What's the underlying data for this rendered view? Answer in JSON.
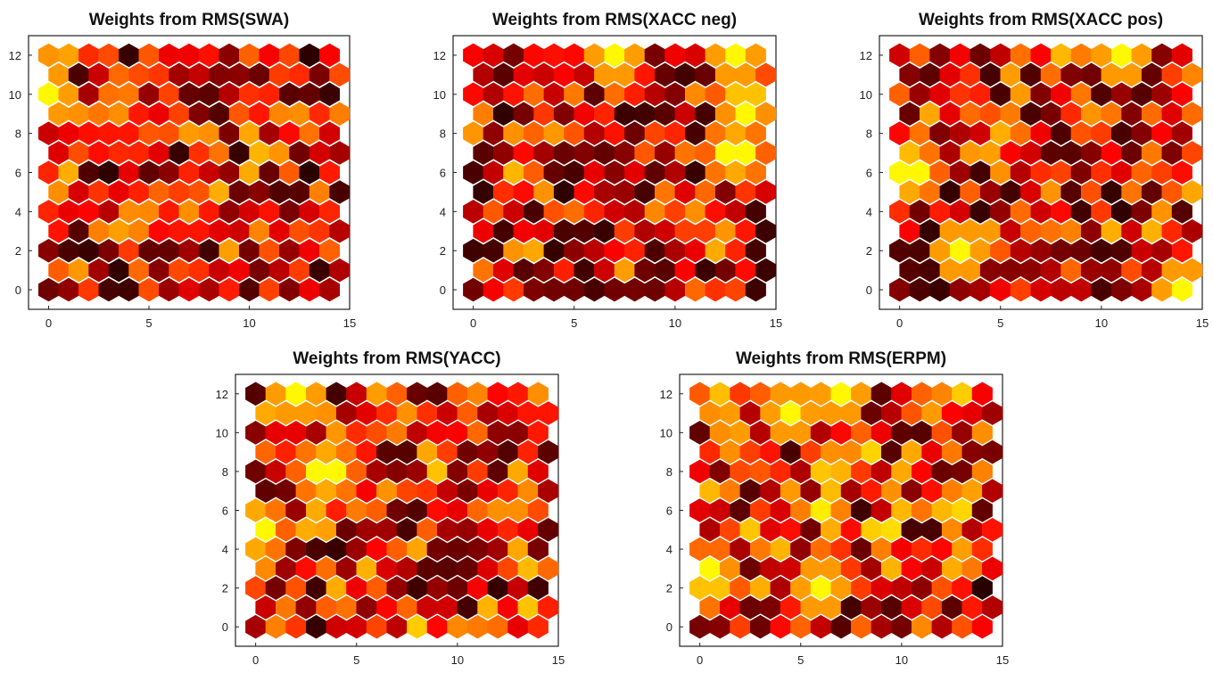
{
  "figure": {
    "panels": [
      {
        "title": "Weights from RMS(SWA)",
        "seed": 11,
        "hot": 0.15
      },
      {
        "title": "Weights from RMS(XACC neg)",
        "seed": 23,
        "hot": 0.18
      },
      {
        "title": "Weights from RMS(XACC pos)",
        "seed": 37,
        "hot": 0.3
      },
      {
        "title": "Weights from RMS(YACC)",
        "seed": 41,
        "hot": 0.45
      },
      {
        "title": "Weights from RMS(ERPM)",
        "seed": 53,
        "hot": 0.85
      }
    ]
  },
  "chart_data": [
    {
      "type": "heatmap",
      "title": "Weights from RMS(SWA)",
      "grid": "hexagonal self-organizing map, 15 columns x 13 rows",
      "colormap": "hot (black -> red -> orange -> yellow)",
      "xlim": [
        -1,
        15
      ],
      "ylim": [
        -1,
        13
      ],
      "xticks": [
        0,
        5,
        10,
        15
      ],
      "yticks": [
        0,
        2,
        4,
        6,
        8,
        10,
        12
      ],
      "summary": "mostly dark red/black with brighter red-orange cells near upper left; yellow at (0,10)",
      "highlights": [
        {
          "x": 0,
          "y": 10,
          "level": "yellow"
        },
        {
          "x": 3.5,
          "y": 9,
          "level": "orange"
        },
        {
          "x": 7,
          "y": 4,
          "level": "orange"
        },
        {
          "x": 0,
          "y": 5,
          "level": "orange"
        }
      ]
    },
    {
      "type": "heatmap",
      "title": "Weights from RMS(XACC neg)",
      "grid": "hexagonal self-organizing map, 15 columns x 13 rows",
      "colormap": "hot",
      "xlim": [
        -1,
        15
      ],
      "ylim": [
        -1,
        13
      ],
      "xticks": [
        0,
        5,
        10,
        15
      ],
      "yticks": [
        0,
        2,
        4,
        6,
        8,
        10,
        12
      ],
      "summary": "dark map with bright yellow/orange cluster near upper right",
      "highlights": [
        {
          "x": 13,
          "y": 12,
          "level": "yellow"
        },
        {
          "x": 7,
          "y": 12,
          "level": "yellow"
        },
        {
          "x": 13.5,
          "y": 9.5,
          "level": "yellow"
        },
        {
          "x": 13,
          "y": 7,
          "level": "yellow"
        },
        {
          "x": 11,
          "y": 3.5,
          "level": "orange"
        }
      ]
    },
    {
      "type": "heatmap",
      "title": "Weights from RMS(XACC pos)",
      "grid": "hexagonal self-organizing map, 15 columns x 13 rows",
      "colormap": "hot",
      "xlim": [
        -1,
        15
      ],
      "ylim": [
        -1,
        13
      ],
      "xticks": [
        0,
        5,
        10,
        15
      ],
      "yticks": [
        0,
        2,
        4,
        6,
        8,
        10,
        12
      ],
      "summary": "mixed red/black with scattered yellow-orange cells, brighter on left side",
      "highlights": [
        {
          "x": 11,
          "y": 12,
          "level": "yellow"
        },
        {
          "x": 3,
          "y": 2,
          "level": "yellow"
        },
        {
          "x": 0.5,
          "y": 6,
          "level": "yellow"
        },
        {
          "x": 14,
          "y": 0,
          "level": "yellow"
        }
      ]
    },
    {
      "type": "heatmap",
      "title": "Weights from RMS(YACC)",
      "grid": "hexagonal self-organizing map, 15 columns x 13 rows",
      "colormap": "hot",
      "xlim": [
        -1,
        15
      ],
      "ylim": [
        -1,
        13
      ],
      "xticks": [
        0,
        5,
        10,
        15
      ],
      "yticks": [
        0,
        2,
        4,
        6,
        8,
        10,
        12
      ],
      "summary": "brighter red-orange on left third, darker on right; yellow cells upper left",
      "highlights": [
        {
          "x": 2,
          "y": 12,
          "level": "yellow"
        },
        {
          "x": 3.5,
          "y": 8,
          "level": "yellow"
        },
        {
          "x": 0,
          "y": 5,
          "level": "yellow"
        },
        {
          "x": 14,
          "y": 12,
          "level": "orange"
        },
        {
          "x": 12.5,
          "y": 6,
          "level": "orange"
        }
      ]
    },
    {
      "type": "heatmap",
      "title": "Weights from RMS(ERPM)",
      "grid": "hexagonal self-organizing map, 15 columns x 13 rows",
      "colormap": "hot",
      "xlim": [
        -1,
        15
      ],
      "ylim": [
        -1,
        13
      ],
      "xticks": [
        0,
        5,
        10,
        15
      ],
      "yticks": [
        0,
        2,
        4,
        6,
        8,
        10,
        12
      ],
      "summary": "predominantly bright red with orange band in center; black cells at lower right",
      "highlights": [
        {
          "x": 7,
          "y": 12,
          "level": "yellow"
        },
        {
          "x": 4.5,
          "y": 11,
          "level": "yellow"
        },
        {
          "x": 0.5,
          "y": 2.5,
          "level": "yellow"
        },
        {
          "x": 6,
          "y": 2,
          "level": "yellow"
        },
        {
          "x": 14,
          "y": 2.5,
          "level": "black"
        }
      ]
    }
  ]
}
